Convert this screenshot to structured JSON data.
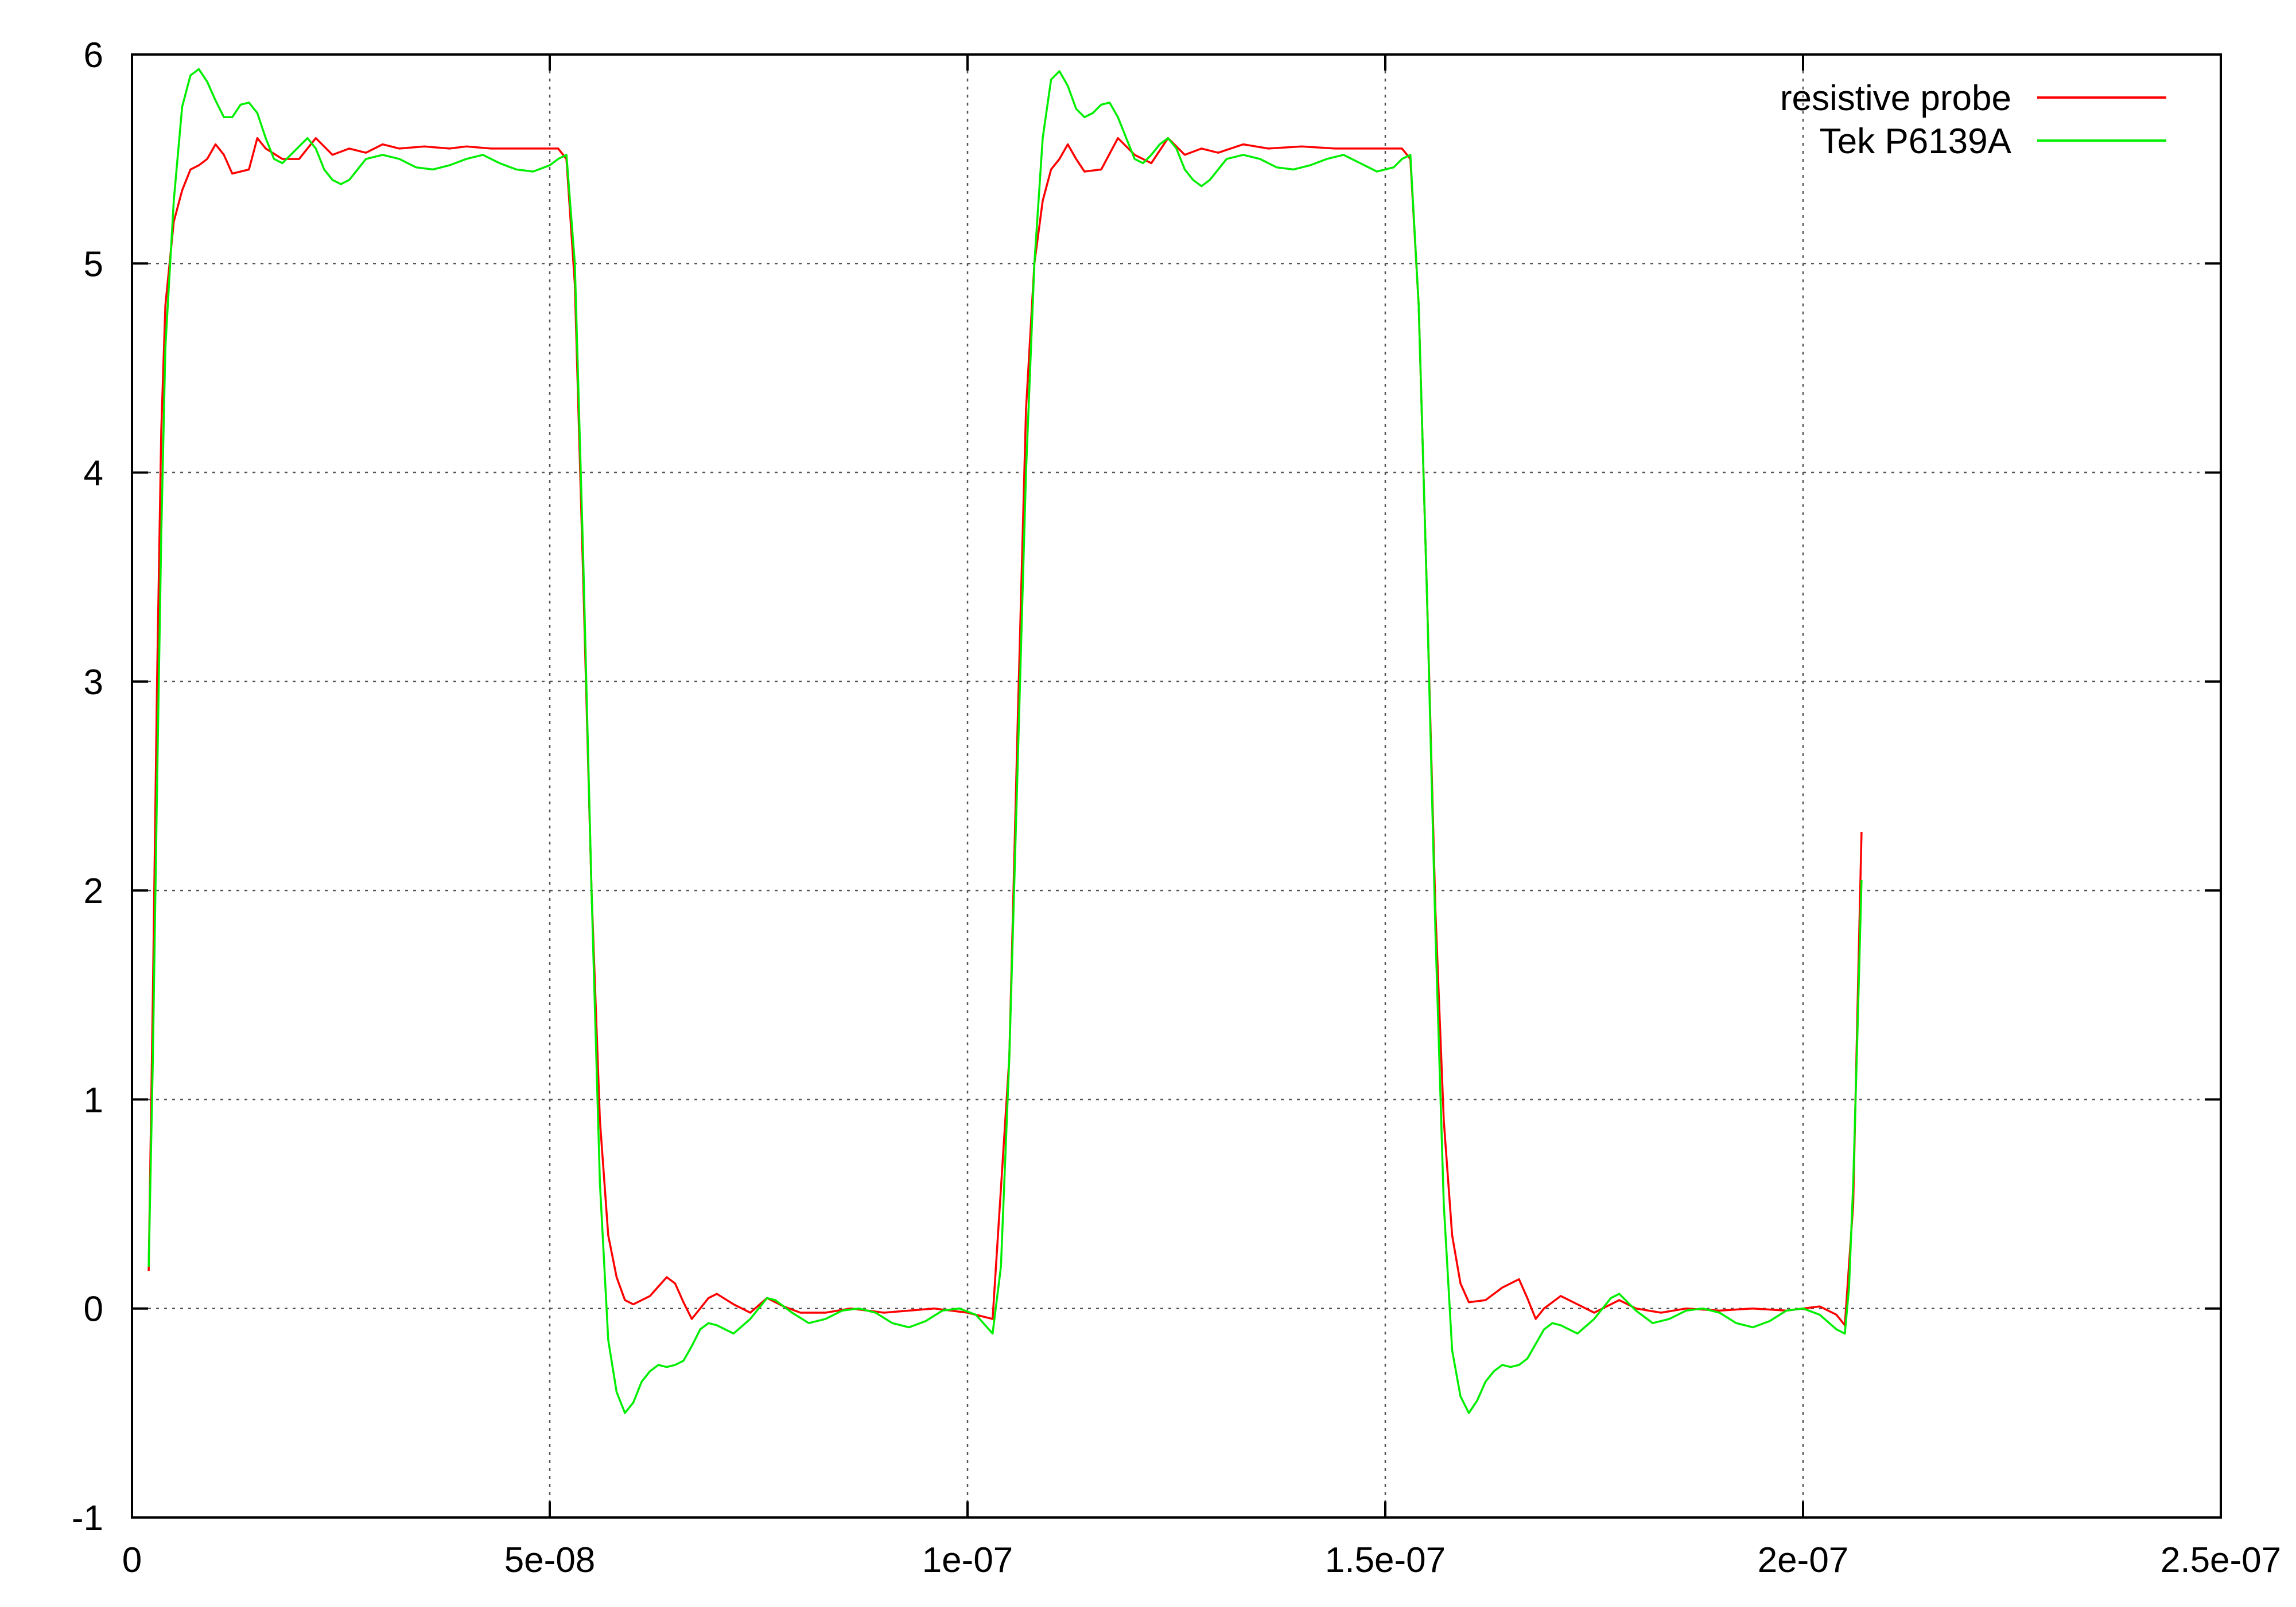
{
  "chart_data": {
    "type": "line",
    "title": "",
    "xlabel": "",
    "ylabel": "",
    "xlim": [
      0,
      2.5e-07
    ],
    "ylim": [
      -1,
      6
    ],
    "grid": true,
    "legend_position": "top-right",
    "x_ticks": [
      {
        "value": 0,
        "label": "0"
      },
      {
        "value": 5e-08,
        "label": "5e-08"
      },
      {
        "value": 1e-07,
        "label": "1e-07"
      },
      {
        "value": 1.5e-07,
        "label": "1.5e-07"
      },
      {
        "value": 2e-07,
        "label": "2e-07"
      },
      {
        "value": 2.5e-07,
        "label": "2.5e-07"
      }
    ],
    "y_ticks": [
      {
        "value": -1,
        "label": "-1"
      },
      {
        "value": 0,
        "label": "0"
      },
      {
        "value": 1,
        "label": "1"
      },
      {
        "value": 2,
        "label": "2"
      },
      {
        "value": 3,
        "label": "3"
      },
      {
        "value": 4,
        "label": "4"
      },
      {
        "value": 5,
        "label": "5"
      },
      {
        "value": 6,
        "label": "6"
      }
    ],
    "series": [
      {
        "name": "resistive probe",
        "color": "#ff0000",
        "points": [
          [
            2e-09,
            0.18
          ],
          [
            2.5e-09,
            1.5
          ],
          [
            3e-09,
            3.0
          ],
          [
            3.5e-09,
            4.2
          ],
          [
            4e-09,
            4.8
          ],
          [
            5e-09,
            5.2
          ],
          [
            6e-09,
            5.35
          ],
          [
            7e-09,
            5.45
          ],
          [
            8e-09,
            5.47
          ],
          [
            9e-09,
            5.5
          ],
          [
            1e-08,
            5.57
          ],
          [
            1.1e-08,
            5.52
          ],
          [
            1.2e-08,
            5.43
          ],
          [
            1.3e-08,
            5.44
          ],
          [
            1.4e-08,
            5.45
          ],
          [
            1.5e-08,
            5.6
          ],
          [
            1.6e-08,
            5.55
          ],
          [
            1.8e-08,
            5.5
          ],
          [
            2e-08,
            5.5
          ],
          [
            2.2e-08,
            5.6
          ],
          [
            2.4e-08,
            5.52
          ],
          [
            2.6e-08,
            5.55
          ],
          [
            2.8e-08,
            5.53
          ],
          [
            3e-08,
            5.57
          ],
          [
            3.2e-08,
            5.55
          ],
          [
            3.5e-08,
            5.56
          ],
          [
            3.8e-08,
            5.55
          ],
          [
            4e-08,
            5.56
          ],
          [
            4.3e-08,
            5.55
          ],
          [
            4.6e-08,
            5.55
          ],
          [
            4.9e-08,
            5.55
          ],
          [
            5.1e-08,
            5.55
          ],
          [
            5.2e-08,
            5.5
          ],
          [
            5.3e-08,
            4.9
          ],
          [
            5.4e-08,
            3.5
          ],
          [
            5.5e-08,
            2.0
          ],
          [
            5.6e-08,
            0.9
          ],
          [
            5.7e-08,
            0.35
          ],
          [
            5.8e-08,
            0.15
          ],
          [
            5.9e-08,
            0.04
          ],
          [
            6e-08,
            0.02
          ],
          [
            6.2e-08,
            0.06
          ],
          [
            6.4e-08,
            0.15
          ],
          [
            6.5e-08,
            0.12
          ],
          [
            6.6e-08,
            0.03
          ],
          [
            6.7e-08,
            -0.05
          ],
          [
            6.8e-08,
            0.0
          ],
          [
            6.9e-08,
            0.05
          ],
          [
            7e-08,
            0.07
          ],
          [
            7.2e-08,
            0.02
          ],
          [
            7.4e-08,
            -0.02
          ],
          [
            7.6e-08,
            0.05
          ],
          [
            7.8e-08,
            0.01
          ],
          [
            8e-08,
            -0.02
          ],
          [
            8.3e-08,
            -0.02
          ],
          [
            8.6e-08,
            0.0
          ],
          [
            9e-08,
            -0.02
          ],
          [
            9.3e-08,
            -0.01
          ],
          [
            9.6e-08,
            0.0
          ],
          [
            1e-07,
            -0.02
          ],
          [
            1.03e-07,
            -0.05
          ],
          [
            1.05e-07,
            1.2
          ],
          [
            1.06e-07,
            2.8
          ],
          [
            1.07e-07,
            4.3
          ],
          [
            1.08e-07,
            5.0
          ],
          [
            1.09e-07,
            5.3
          ],
          [
            1.1e-07,
            5.45
          ],
          [
            1.11e-07,
            5.5
          ],
          [
            1.12e-07,
            5.57
          ],
          [
            1.13e-07,
            5.5
          ],
          [
            1.14e-07,
            5.44
          ],
          [
            1.16e-07,
            5.45
          ],
          [
            1.18e-07,
            5.6
          ],
          [
            1.2e-07,
            5.52
          ],
          [
            1.22e-07,
            5.48
          ],
          [
            1.24e-07,
            5.6
          ],
          [
            1.26e-07,
            5.52
          ],
          [
            1.28e-07,
            5.55
          ],
          [
            1.3e-07,
            5.53
          ],
          [
            1.33e-07,
            5.57
          ],
          [
            1.36e-07,
            5.55
          ],
          [
            1.4e-07,
            5.56
          ],
          [
            1.44e-07,
            5.55
          ],
          [
            1.48e-07,
            5.55
          ],
          [
            1.52e-07,
            5.55
          ],
          [
            1.53e-07,
            5.5
          ],
          [
            1.54e-07,
            4.8
          ],
          [
            1.55e-07,
            3.4
          ],
          [
            1.56e-07,
            1.9
          ],
          [
            1.57e-07,
            0.9
          ],
          [
            1.58e-07,
            0.35
          ],
          [
            1.59e-07,
            0.12
          ],
          [
            1.6e-07,
            0.03
          ],
          [
            1.62e-07,
            0.04
          ],
          [
            1.64e-07,
            0.1
          ],
          [
            1.66e-07,
            0.14
          ],
          [
            1.67e-07,
            0.05
          ],
          [
            1.68e-07,
            -0.05
          ],
          [
            1.69e-07,
            0.0
          ],
          [
            1.71e-07,
            0.06
          ],
          [
            1.73e-07,
            0.02
          ],
          [
            1.75e-07,
            -0.02
          ],
          [
            1.77e-07,
            0.02
          ],
          [
            1.78e-07,
            0.04
          ],
          [
            1.8e-07,
            0.0
          ],
          [
            1.83e-07,
            -0.02
          ],
          [
            1.86e-07,
            0.0
          ],
          [
            1.9e-07,
            -0.01
          ],
          [
            1.94e-07,
            0.0
          ],
          [
            1.98e-07,
            -0.01
          ],
          [
            2.02e-07,
            0.01
          ],
          [
            2.04e-07,
            -0.03
          ],
          [
            2.05e-07,
            -0.08
          ],
          [
            2.06e-07,
            0.5
          ],
          [
            2.065e-07,
            1.4
          ],
          [
            2.07e-07,
            2.28
          ]
        ]
      },
      {
        "name": "Tek P6139A",
        "color": "#00ee00",
        "points": [
          [
            2e-09,
            0.2
          ],
          [
            2.5e-09,
            1.2
          ],
          [
            3e-09,
            2.5
          ],
          [
            3.5e-09,
            3.7
          ],
          [
            4e-09,
            4.6
          ],
          [
            5e-09,
            5.3
          ],
          [
            6e-09,
            5.75
          ],
          [
            7e-09,
            5.9
          ],
          [
            8e-09,
            5.93
          ],
          [
            9e-09,
            5.87
          ],
          [
            1e-08,
            5.78
          ],
          [
            1.1e-08,
            5.7
          ],
          [
            1.2e-08,
            5.7
          ],
          [
            1.3e-08,
            5.76
          ],
          [
            1.4e-08,
            5.77
          ],
          [
            1.5e-08,
            5.72
          ],
          [
            1.6e-08,
            5.6
          ],
          [
            1.7e-08,
            5.5
          ],
          [
            1.8e-08,
            5.48
          ],
          [
            1.9e-08,
            5.52
          ],
          [
            2e-08,
            5.56
          ],
          [
            2.1e-08,
            5.6
          ],
          [
            2.2e-08,
            5.55
          ],
          [
            2.3e-08,
            5.45
          ],
          [
            2.4e-08,
            5.4
          ],
          [
            2.5e-08,
            5.38
          ],
          [
            2.6e-08,
            5.4
          ],
          [
            2.7e-08,
            5.45
          ],
          [
            2.8e-08,
            5.5
          ],
          [
            3e-08,
            5.52
          ],
          [
            3.2e-08,
            5.5
          ],
          [
            3.4e-08,
            5.46
          ],
          [
            3.6e-08,
            5.45
          ],
          [
            3.8e-08,
            5.47
          ],
          [
            4e-08,
            5.5
          ],
          [
            4.2e-08,
            5.52
          ],
          [
            4.4e-08,
            5.48
          ],
          [
            4.6e-08,
            5.45
          ],
          [
            4.8e-08,
            5.44
          ],
          [
            5e-08,
            5.47
          ],
          [
            5.1e-08,
            5.5
          ],
          [
            5.2e-08,
            5.52
          ],
          [
            5.3e-08,
            5.0
          ],
          [
            5.4e-08,
            3.6
          ],
          [
            5.5e-08,
            2.0
          ],
          [
            5.6e-08,
            0.6
          ],
          [
            5.7e-08,
            -0.15
          ],
          [
            5.8e-08,
            -0.4
          ],
          [
            5.9e-08,
            -0.5
          ],
          [
            6e-08,
            -0.45
          ],
          [
            6.1e-08,
            -0.35
          ],
          [
            6.2e-08,
            -0.3
          ],
          [
            6.3e-08,
            -0.27
          ],
          [
            6.4e-08,
            -0.28
          ],
          [
            6.5e-08,
            -0.27
          ],
          [
            6.6e-08,
            -0.25
          ],
          [
            6.7e-08,
            -0.18
          ],
          [
            6.8e-08,
            -0.1
          ],
          [
            6.9e-08,
            -0.07
          ],
          [
            7e-08,
            -0.08
          ],
          [
            7.2e-08,
            -0.12
          ],
          [
            7.4e-08,
            -0.05
          ],
          [
            7.6e-08,
            0.05
          ],
          [
            7.7e-08,
            0.04
          ],
          [
            7.9e-08,
            -0.02
          ],
          [
            8.1e-08,
            -0.07
          ],
          [
            8.3e-08,
            -0.05
          ],
          [
            8.5e-08,
            -0.01
          ],
          [
            8.7e-08,
            0.0
          ],
          [
            8.9e-08,
            -0.02
          ],
          [
            9.1e-08,
            -0.07
          ],
          [
            9.3e-08,
            -0.09
          ],
          [
            9.5e-08,
            -0.06
          ],
          [
            9.7e-08,
            -0.01
          ],
          [
            9.9e-08,
            0.0
          ],
          [
            1.01e-07,
            -0.03
          ],
          [
            1.03e-07,
            -0.12
          ],
          [
            1.04e-07,
            0.2
          ],
          [
            1.05e-07,
            1.2
          ],
          [
            1.06e-07,
            2.6
          ],
          [
            1.07e-07,
            4.0
          ],
          [
            1.08e-07,
            5.0
          ],
          [
            1.09e-07,
            5.6
          ],
          [
            1.1e-07,
            5.88
          ],
          [
            1.11e-07,
            5.92
          ],
          [
            1.12e-07,
            5.85
          ],
          [
            1.13e-07,
            5.74
          ],
          [
            1.14e-07,
            5.7
          ],
          [
            1.15e-07,
            5.72
          ],
          [
            1.16e-07,
            5.76
          ],
          [
            1.17e-07,
            5.77
          ],
          [
            1.18e-07,
            5.7
          ],
          [
            1.19e-07,
            5.6
          ],
          [
            1.2e-07,
            5.5
          ],
          [
            1.21e-07,
            5.48
          ],
          [
            1.22e-07,
            5.52
          ],
          [
            1.23e-07,
            5.57
          ],
          [
            1.24e-07,
            5.6
          ],
          [
            1.25e-07,
            5.55
          ],
          [
            1.26e-07,
            5.45
          ],
          [
            1.27e-07,
            5.4
          ],
          [
            1.28e-07,
            5.37
          ],
          [
            1.29e-07,
            5.4
          ],
          [
            1.3e-07,
            5.45
          ],
          [
            1.31e-07,
            5.5
          ],
          [
            1.33e-07,
            5.52
          ],
          [
            1.35e-07,
            5.5
          ],
          [
            1.37e-07,
            5.46
          ],
          [
            1.39e-07,
            5.45
          ],
          [
            1.41e-07,
            5.47
          ],
          [
            1.43e-07,
            5.5
          ],
          [
            1.45e-07,
            5.52
          ],
          [
            1.47e-07,
            5.48
          ],
          [
            1.49e-07,
            5.44
          ],
          [
            1.51e-07,
            5.46
          ],
          [
            1.52e-07,
            5.5
          ],
          [
            1.53e-07,
            5.52
          ],
          [
            1.54e-07,
            4.8
          ],
          [
            1.55e-07,
            3.4
          ],
          [
            1.56e-07,
            1.8
          ],
          [
            1.57e-07,
            0.5
          ],
          [
            1.58e-07,
            -0.2
          ],
          [
            1.59e-07,
            -0.42
          ],
          [
            1.6e-07,
            -0.5
          ],
          [
            1.61e-07,
            -0.44
          ],
          [
            1.62e-07,
            -0.35
          ],
          [
            1.63e-07,
            -0.3
          ],
          [
            1.64e-07,
            -0.27
          ],
          [
            1.65e-07,
            -0.28
          ],
          [
            1.66e-07,
            -0.27
          ],
          [
            1.67e-07,
            -0.24
          ],
          [
            1.68e-07,
            -0.17
          ],
          [
            1.69e-07,
            -0.1
          ],
          [
            1.7e-07,
            -0.07
          ],
          [
            1.71e-07,
            -0.08
          ],
          [
            1.73e-07,
            -0.12
          ],
          [
            1.75e-07,
            -0.05
          ],
          [
            1.77e-07,
            0.05
          ],
          [
            1.78e-07,
            0.07
          ],
          [
            1.8e-07,
            -0.01
          ],
          [
            1.82e-07,
            -0.07
          ],
          [
            1.84e-07,
            -0.05
          ],
          [
            1.86e-07,
            -0.01
          ],
          [
            1.88e-07,
            0.0
          ],
          [
            1.9e-07,
            -0.02
          ],
          [
            1.92e-07,
            -0.07
          ],
          [
            1.94e-07,
            -0.09
          ],
          [
            1.96e-07,
            -0.06
          ],
          [
            1.98e-07,
            -0.01
          ],
          [
            2e-07,
            0.0
          ],
          [
            2.02e-07,
            -0.03
          ],
          [
            2.04e-07,
            -0.1
          ],
          [
            2.05e-07,
            -0.12
          ],
          [
            2.055e-07,
            0.1
          ],
          [
            2.06e-07,
            0.6
          ],
          [
            2.065e-07,
            1.3
          ],
          [
            2.07e-07,
            2.05
          ]
        ]
      }
    ]
  }
}
